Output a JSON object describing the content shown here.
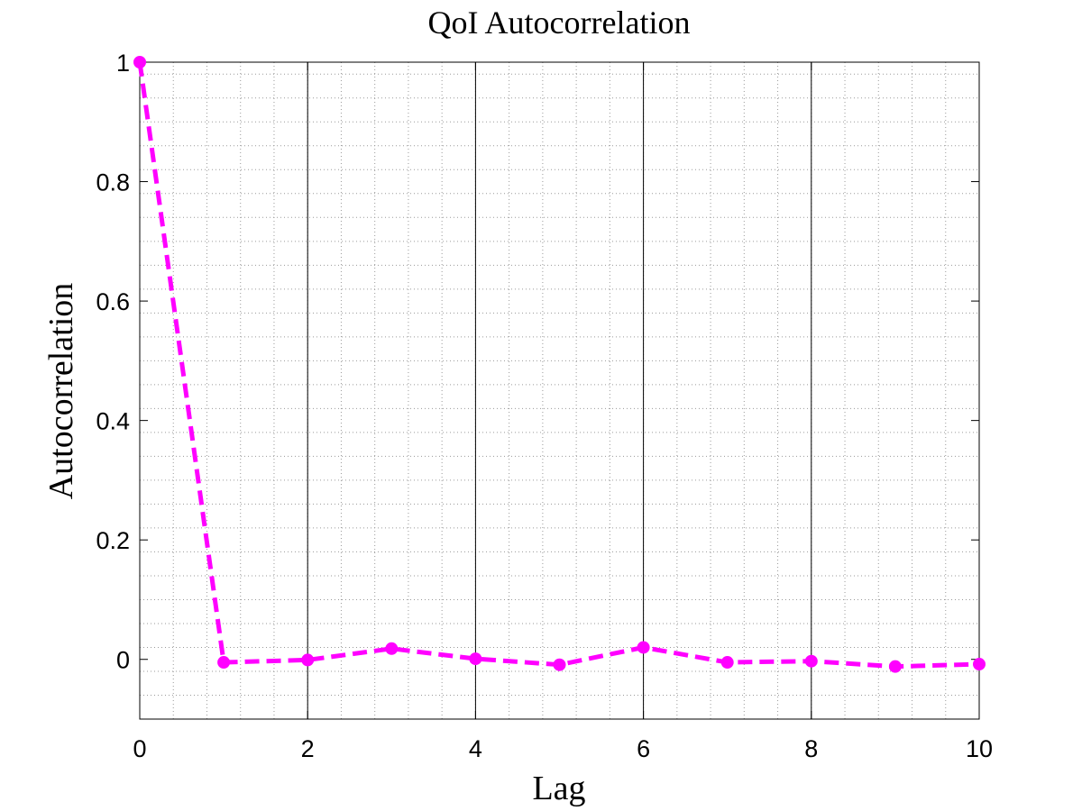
{
  "chart_data": {
    "type": "line",
    "title": "QoI Autocorrelation",
    "xlabel": "Lag",
    "ylabel": "Autocorrelation",
    "xlim": [
      0,
      10
    ],
    "ylim": [
      -0.1,
      1
    ],
    "xticks": [
      0,
      2,
      4,
      6,
      8,
      10
    ],
    "xtick_labels": [
      "0",
      "2",
      "4",
      "6",
      "8",
      "10"
    ],
    "yticks": [
      0,
      0.2,
      0.4,
      0.6,
      0.8,
      1
    ],
    "ytick_labels": [
      "0",
      "0.2",
      "0.4",
      "0.6",
      "0.8",
      "1"
    ],
    "x_minor_step": 0.4,
    "y_minor_step": 0.04,
    "grid": true,
    "legend": "none",
    "series": [
      {
        "color": "#ff00ff",
        "line_style": "dashed",
        "marker": "circle",
        "x": [
          0,
          1,
          2,
          3,
          4,
          5,
          6,
          7,
          8,
          9,
          10
        ],
        "y": [
          1.0,
          -0.005,
          -0.001,
          0.018,
          0.001,
          -0.009,
          0.02,
          -0.005,
          -0.003,
          -0.012,
          -0.008
        ]
      }
    ]
  }
}
